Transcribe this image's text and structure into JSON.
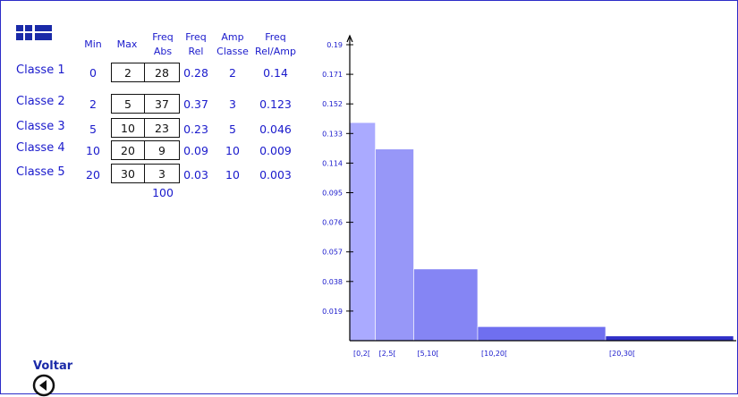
{
  "headers": {
    "min": "Min",
    "max": "Max",
    "freq_abs": [
      "Freq",
      "Abs"
    ],
    "freq_rel": [
      "Freq",
      "Rel"
    ],
    "amp_classe": [
      "Amp",
      "Classe"
    ],
    "freq_rel_amp": [
      "Freq",
      "Rel/Amp"
    ]
  },
  "rows": [
    {
      "label": "Classe",
      "num": "1",
      "min": "0",
      "max": "2",
      "freq_abs": "28",
      "freq_rel": "0.28",
      "amp": "2",
      "rel_amp": "0.14"
    },
    {
      "label": "Classe",
      "num": "2",
      "min": "2",
      "max": "5",
      "freq_abs": "37",
      "freq_rel": "0.37",
      "amp": "3",
      "rel_amp": "0.123"
    },
    {
      "label": "Classe",
      "num": "3",
      "min": "5",
      "max": "10",
      "freq_abs": "23",
      "freq_rel": "0.23",
      "amp": "5",
      "rel_amp": "0.046"
    },
    {
      "label": "Classe",
      "num": "4",
      "min": "10",
      "max": "20",
      "freq_abs": "9",
      "freq_rel": "0.09",
      "amp": "10",
      "rel_amp": "0.009"
    },
    {
      "label": "Classe",
      "num": "5",
      "min": "20",
      "max": "30",
      "freq_abs": "3",
      "freq_rel": "0.03",
      "amp": "10",
      "rel_amp": "0.003"
    }
  ],
  "total": "100",
  "back": {
    "label": "Voltar",
    "icon": "back-arrow-icon"
  },
  "colors": {
    "text": "#1a1acc",
    "bar": "#7777ff",
    "axis": "#000000"
  },
  "chart_data": {
    "type": "bar",
    "categories": [
      "[0,2[",
      "[2,5[",
      "[5,10[",
      "[10,20[",
      "[20,30["
    ],
    "x_bins": [
      [
        0,
        2
      ],
      [
        2,
        5
      ],
      [
        5,
        10
      ],
      [
        10,
        20
      ],
      [
        20,
        30
      ]
    ],
    "values": [
      0.14,
      0.123,
      0.046,
      0.009,
      0.003
    ],
    "y_ticks": [
      "0.019",
      "0.038",
      "0.057",
      "0.076",
      "0.095",
      "0.114",
      "0.133",
      "0.152",
      "0.171",
      "0.19"
    ],
    "ylim": [
      0,
      0.19
    ],
    "xlim": [
      0,
      30
    ],
    "grid": false,
    "title": "",
    "xlabel": "",
    "ylabel": ""
  }
}
